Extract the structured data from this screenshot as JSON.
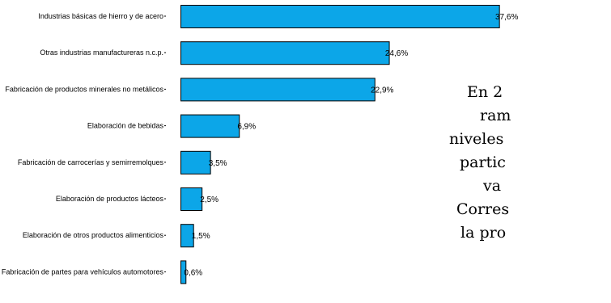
{
  "chart_data": {
    "type": "bar",
    "orientation": "horizontal",
    "categories": [
      "Industrias básicas de hierro y de acero",
      "Otras industrias manufactureras n.c.p.",
      "Fabricación de productos minerales no metálicos",
      "Elaboración de bebidas",
      "Fabricación de carrocerías y semirremolques",
      "Elaboración de productos lácteos",
      "Elaboración de otros productos alimenticios",
      "Fabricación de partes para vehículos automotores"
    ],
    "values": [
      37.6,
      24.6,
      22.9,
      6.9,
      3.5,
      2.5,
      1.5,
      0.6
    ],
    "value_labels": [
      "37,6%",
      "24,6%",
      "22,9%",
      "6,9%",
      "3,5%",
      "2,5%",
      "1,5%",
      "0,6%"
    ],
    "bar_color": "#0ca6e8",
    "xlim": [
      0,
      38
    ]
  },
  "side_text": {
    "lines": [
      "En 2",
      "ram",
      "niveles",
      "partic",
      "va",
      "Corres",
      "la pro"
    ]
  }
}
